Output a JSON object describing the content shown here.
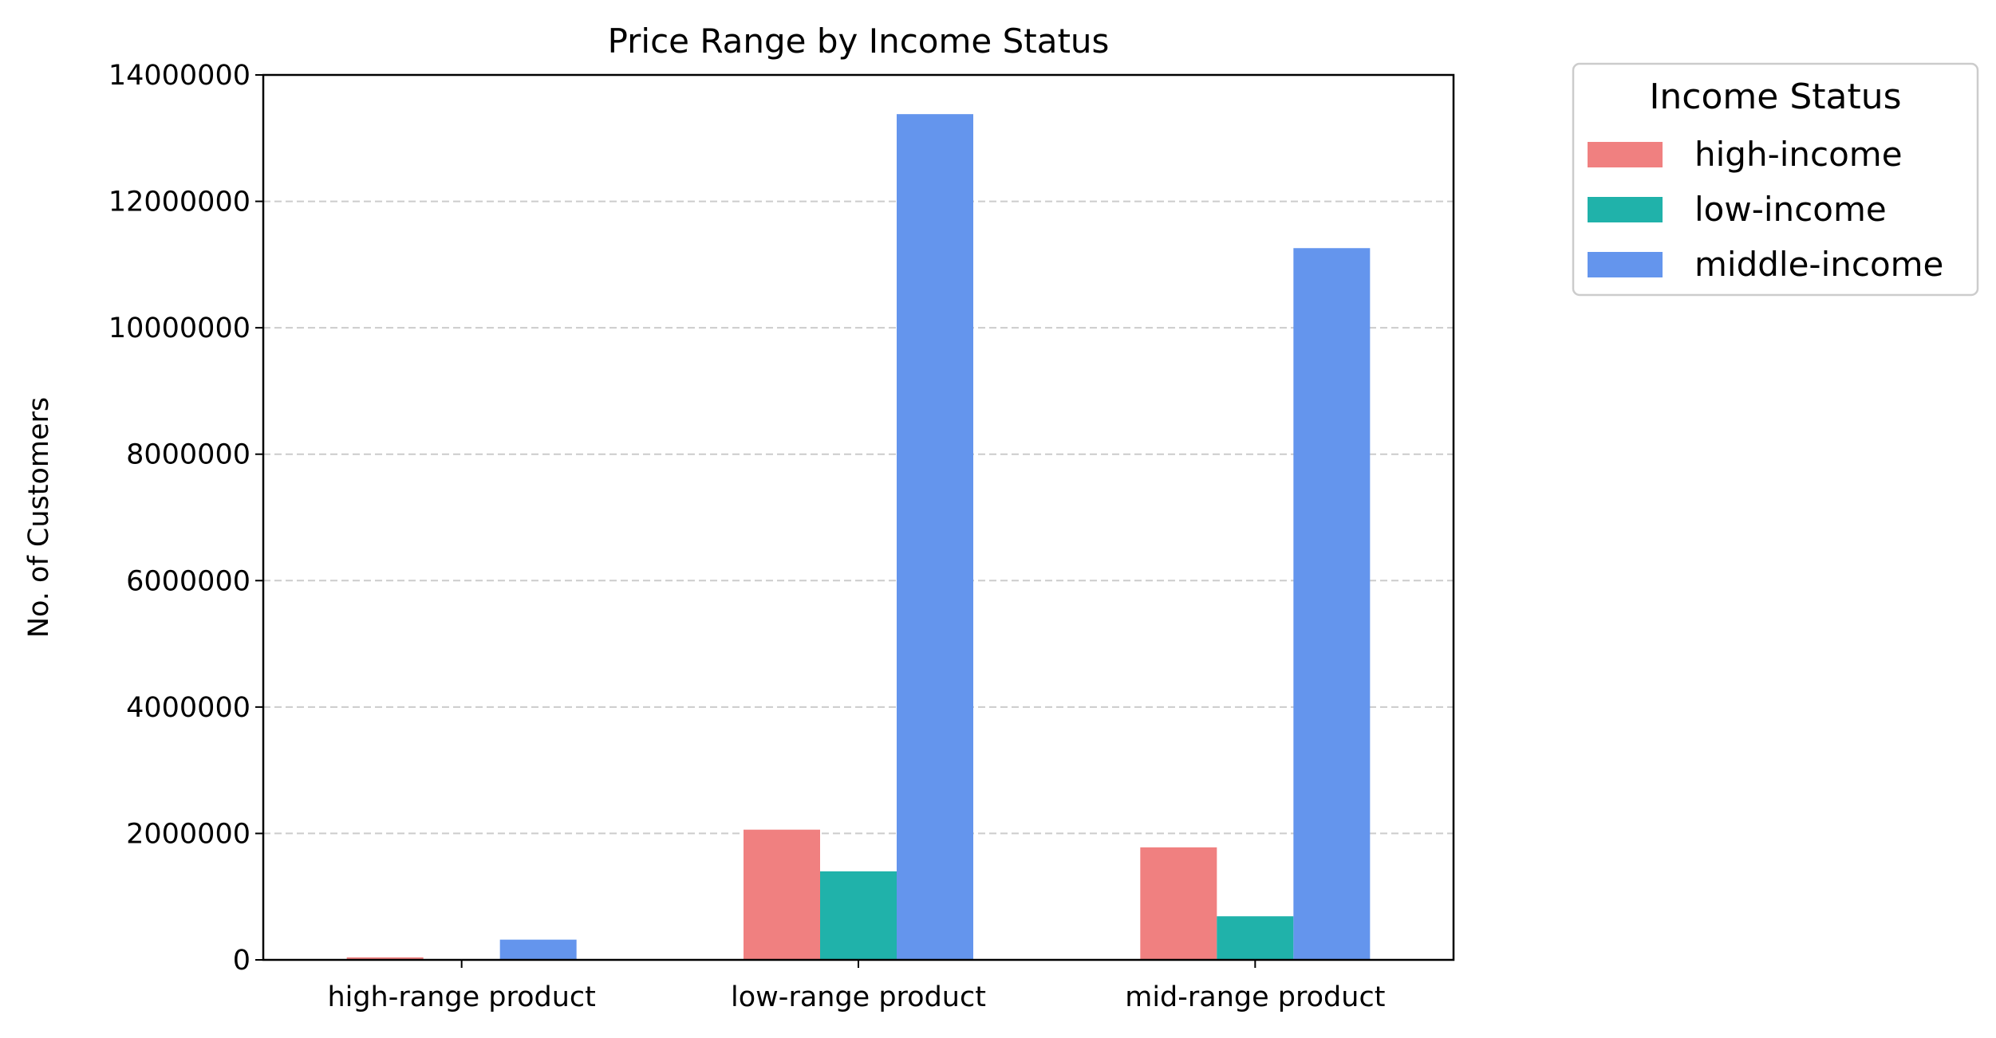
{
  "chart_data": {
    "type": "bar",
    "title": "Price Range by Income Status",
    "xlabel": "",
    "ylabel": "No. of Customers",
    "categories": [
      "high-range product",
      "low-range product",
      "mid-range product"
    ],
    "series": [
      {
        "name": "high-income",
        "color": "#F08080",
        "values": [
          40000,
          2060000,
          1780000
        ]
      },
      {
        "name": "low-income",
        "color": "#20B2AA",
        "values": [
          0,
          1400000,
          690000
        ]
      },
      {
        "name": "middle-income",
        "color": "#6495ED",
        "values": [
          320000,
          13380000,
          11260000
        ]
      }
    ],
    "ylim": [
      0,
      14000000
    ],
    "yticks": [
      0,
      2000000,
      4000000,
      6000000,
      8000000,
      10000000,
      12000000,
      14000000
    ],
    "ytick_labels": [
      "0",
      "2000000",
      "4000000",
      "6000000",
      "8000000",
      "10000000",
      "12000000",
      "14000000"
    ],
    "grid": "horizontal dashed",
    "legend": {
      "title": "Income Status",
      "placement": "outside top-right"
    }
  }
}
